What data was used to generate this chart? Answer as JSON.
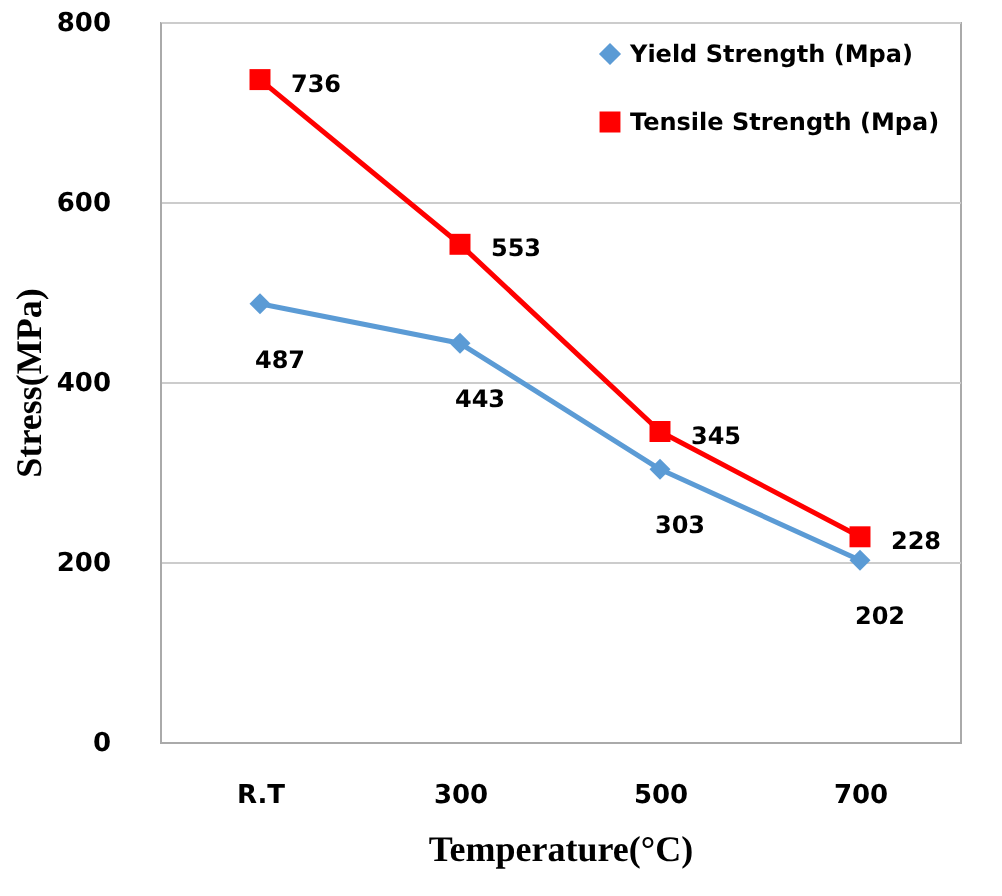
{
  "chart_data": {
    "type": "line",
    "xlabel": "Temperature(°C)",
    "ylabel": "Stress(MPa)",
    "categories": [
      "R.T",
      "300",
      "500",
      "700"
    ],
    "series": [
      {
        "name": "Yield Strength (Mpa)",
        "color": "#5b9bd5",
        "marker": "diamond",
        "values": [
          487,
          443,
          303,
          202
        ]
      },
      {
        "name": "Tensile Strength (Mpa)",
        "color": "#ff0000",
        "marker": "square",
        "values": [
          736,
          553,
          345,
          228
        ]
      }
    ],
    "ylim": [
      0,
      800
    ],
    "yticks": [
      0,
      200,
      400,
      600,
      800
    ],
    "grid": "y",
    "legend": "top right",
    "data_labels": true,
    "line_style": "solid"
  }
}
